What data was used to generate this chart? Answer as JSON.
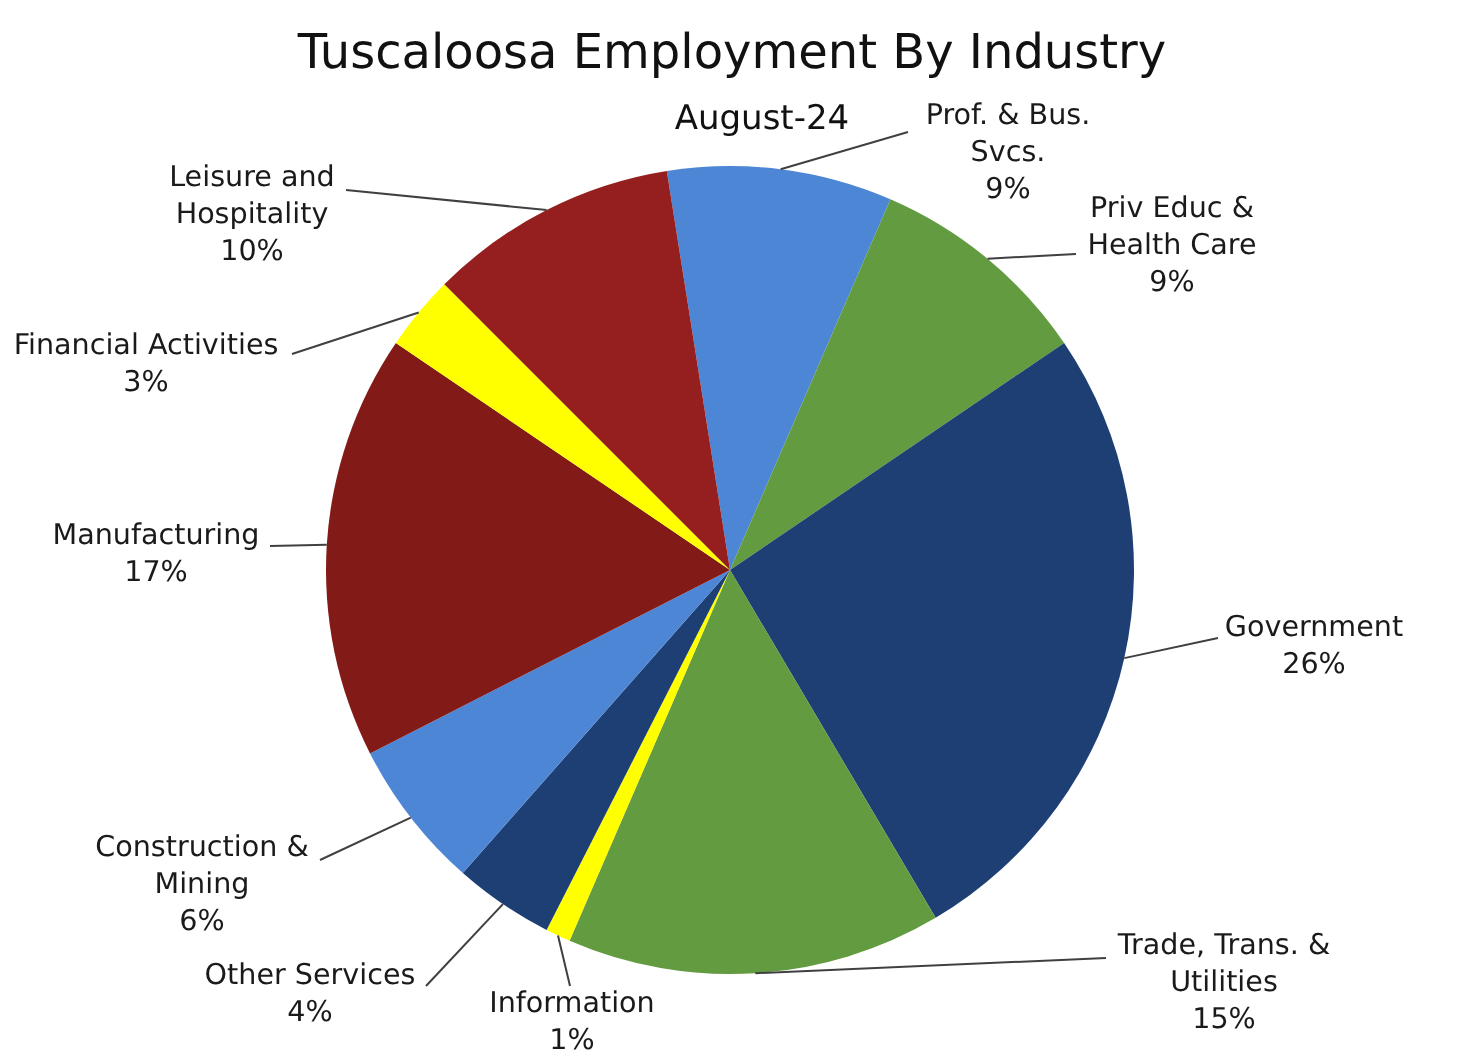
{
  "chart_data": {
    "type": "pie",
    "title": "Tuscaloosa Employment By Industry",
    "subtitle": "August-24",
    "categories": [
      "Prof. & Bus. Svcs.",
      "Priv Educ & Health Care",
      "Government",
      "Trade, Trans. & Utilities",
      "Information",
      "Other Services",
      "Construction & Mining",
      "Manufacturing",
      "Financial Activities",
      "Leisure and Hospitality"
    ],
    "values": [
      9,
      9,
      26,
      15,
      1,
      4,
      6,
      17,
      3,
      10
    ],
    "value_labels": [
      "9%",
      "9%",
      "26%",
      "15%",
      "1%",
      "4%",
      "6%",
      "17%",
      "3%",
      "10%"
    ],
    "colors": [
      "#4e86d6",
      "#639b41",
      "#1e3f73",
      "#639b41",
      "#ffff00",
      "#1e3f73",
      "#4e86d6",
      "#821a17",
      "#ffff00",
      "#941f1e"
    ]
  }
}
